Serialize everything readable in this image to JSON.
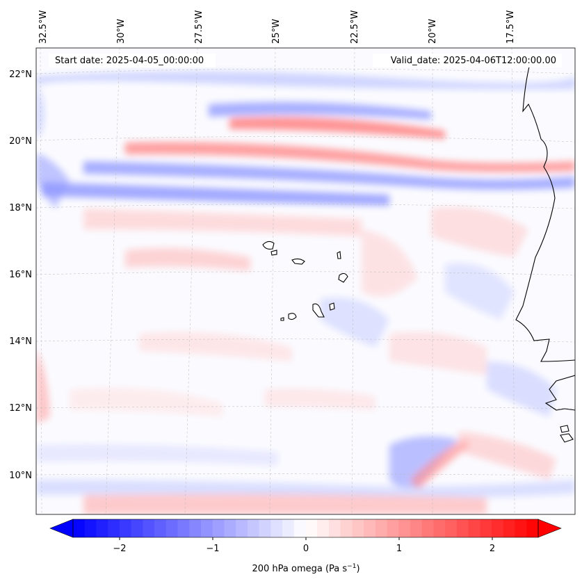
{
  "header": {
    "start_date": "Start date: 2025-04-05_00:00:00",
    "valid_date": "Valid_date: 2025-04-06T12:00:00.00"
  },
  "axes": {
    "longitude_labels": [
      "32.5°W",
      "30°W",
      "27.5°W",
      "25°W",
      "22.5°W",
      "20°W",
      "17.5°W"
    ],
    "latitude_labels": [
      "22°N",
      "20°N",
      "18°N",
      "16°N",
      "14°N",
      "12°N",
      "10°N"
    ]
  },
  "colorbar": {
    "label": "200 hPa omega (Pa s",
    "label_exponent": "−1",
    "label_close": ")",
    "ticks": [
      "−2",
      "−1",
      "0",
      "1",
      "2"
    ],
    "range": [
      -2.5,
      2.5
    ],
    "colors": {
      "negative": "#0000ff",
      "zero": "#ffffff",
      "positive": "#ff0000"
    }
  }
}
